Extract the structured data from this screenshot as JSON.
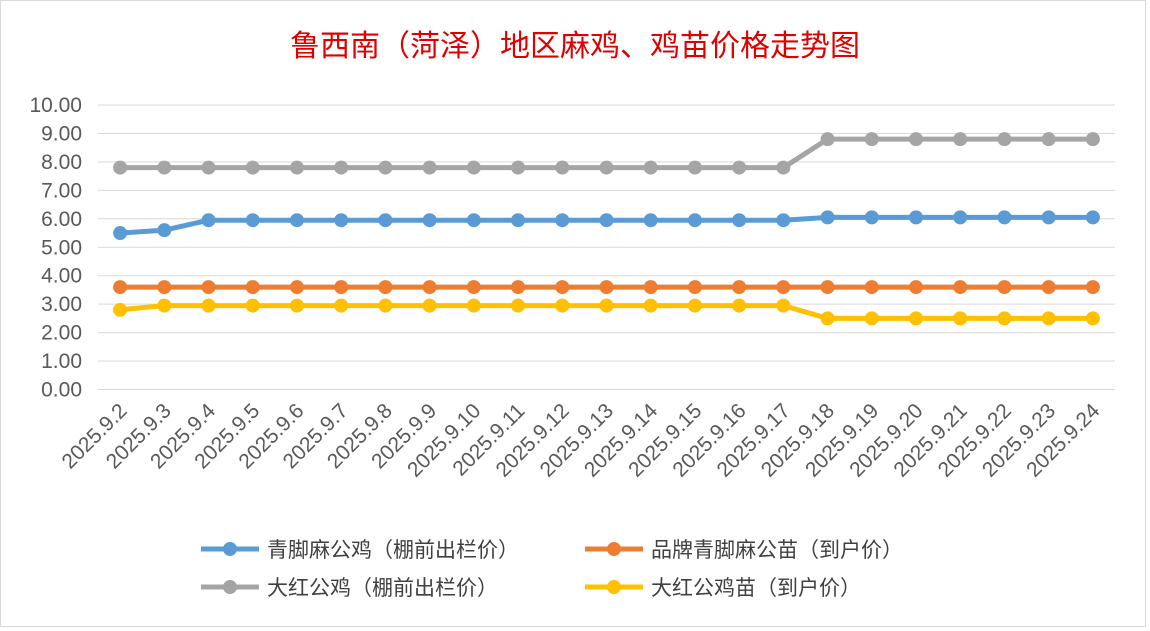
{
  "chart_data": {
    "type": "line",
    "title": "鲁西南（菏泽）地区麻鸡、鸡苗价格走势图",
    "xlabel": "",
    "ylabel": "",
    "categories": [
      "2025.9.2",
      "2025.9.3",
      "2025.9.4",
      "2025.9.5",
      "2025.9.6",
      "2025.9.7",
      "2025.9.8",
      "2025.9.9",
      "2025.9.10",
      "2025.9.11",
      "2025.9.12",
      "2025.9.13",
      "2025.9.14",
      "2025.9.15",
      "2025.9.16",
      "2025.9.17",
      "2025.9.18",
      "2025.9.19",
      "2025.9.20",
      "2025.9.21",
      "2025.9.22",
      "2025.9.23",
      "2025.9.24"
    ],
    "ylim": [
      0,
      10
    ],
    "yticks": [
      "0.00",
      "1.00",
      "2.00",
      "3.00",
      "4.00",
      "5.00",
      "6.00",
      "7.00",
      "8.00",
      "9.00",
      "10.00"
    ],
    "grid": true,
    "legend_position": "bottom",
    "series": [
      {
        "name": "青脚麻公鸡（棚前出栏价）",
        "color": "#5b9bd5",
        "values": [
          5.5,
          5.6,
          5.95,
          5.95,
          5.95,
          5.95,
          5.95,
          5.95,
          5.95,
          5.95,
          5.95,
          5.95,
          5.95,
          5.95,
          5.95,
          5.95,
          6.05,
          6.05,
          6.05,
          6.05,
          6.05,
          6.05,
          6.05
        ]
      },
      {
        "name": "品牌青脚麻公苗（到户价）",
        "color": "#ed7d31",
        "values": [
          3.6,
          3.6,
          3.6,
          3.6,
          3.6,
          3.6,
          3.6,
          3.6,
          3.6,
          3.6,
          3.6,
          3.6,
          3.6,
          3.6,
          3.6,
          3.6,
          3.6,
          3.6,
          3.6,
          3.6,
          3.6,
          3.6,
          3.6
        ]
      },
      {
        "name": "大红公鸡（棚前出栏价）",
        "color": "#a5a5a5",
        "values": [
          7.8,
          7.8,
          7.8,
          7.8,
          7.8,
          7.8,
          7.8,
          7.8,
          7.8,
          7.8,
          7.8,
          7.8,
          7.8,
          7.8,
          7.8,
          7.8,
          8.8,
          8.8,
          8.8,
          8.8,
          8.8,
          8.8,
          8.8
        ]
      },
      {
        "name": "大红公鸡苗（到户价）",
        "color": "#ffc000",
        "values": [
          2.8,
          2.95,
          2.95,
          2.95,
          2.95,
          2.95,
          2.95,
          2.95,
          2.95,
          2.95,
          2.95,
          2.95,
          2.95,
          2.95,
          2.95,
          2.95,
          2.5,
          2.5,
          2.5,
          2.5,
          2.5,
          2.5,
          2.5
        ]
      }
    ]
  }
}
